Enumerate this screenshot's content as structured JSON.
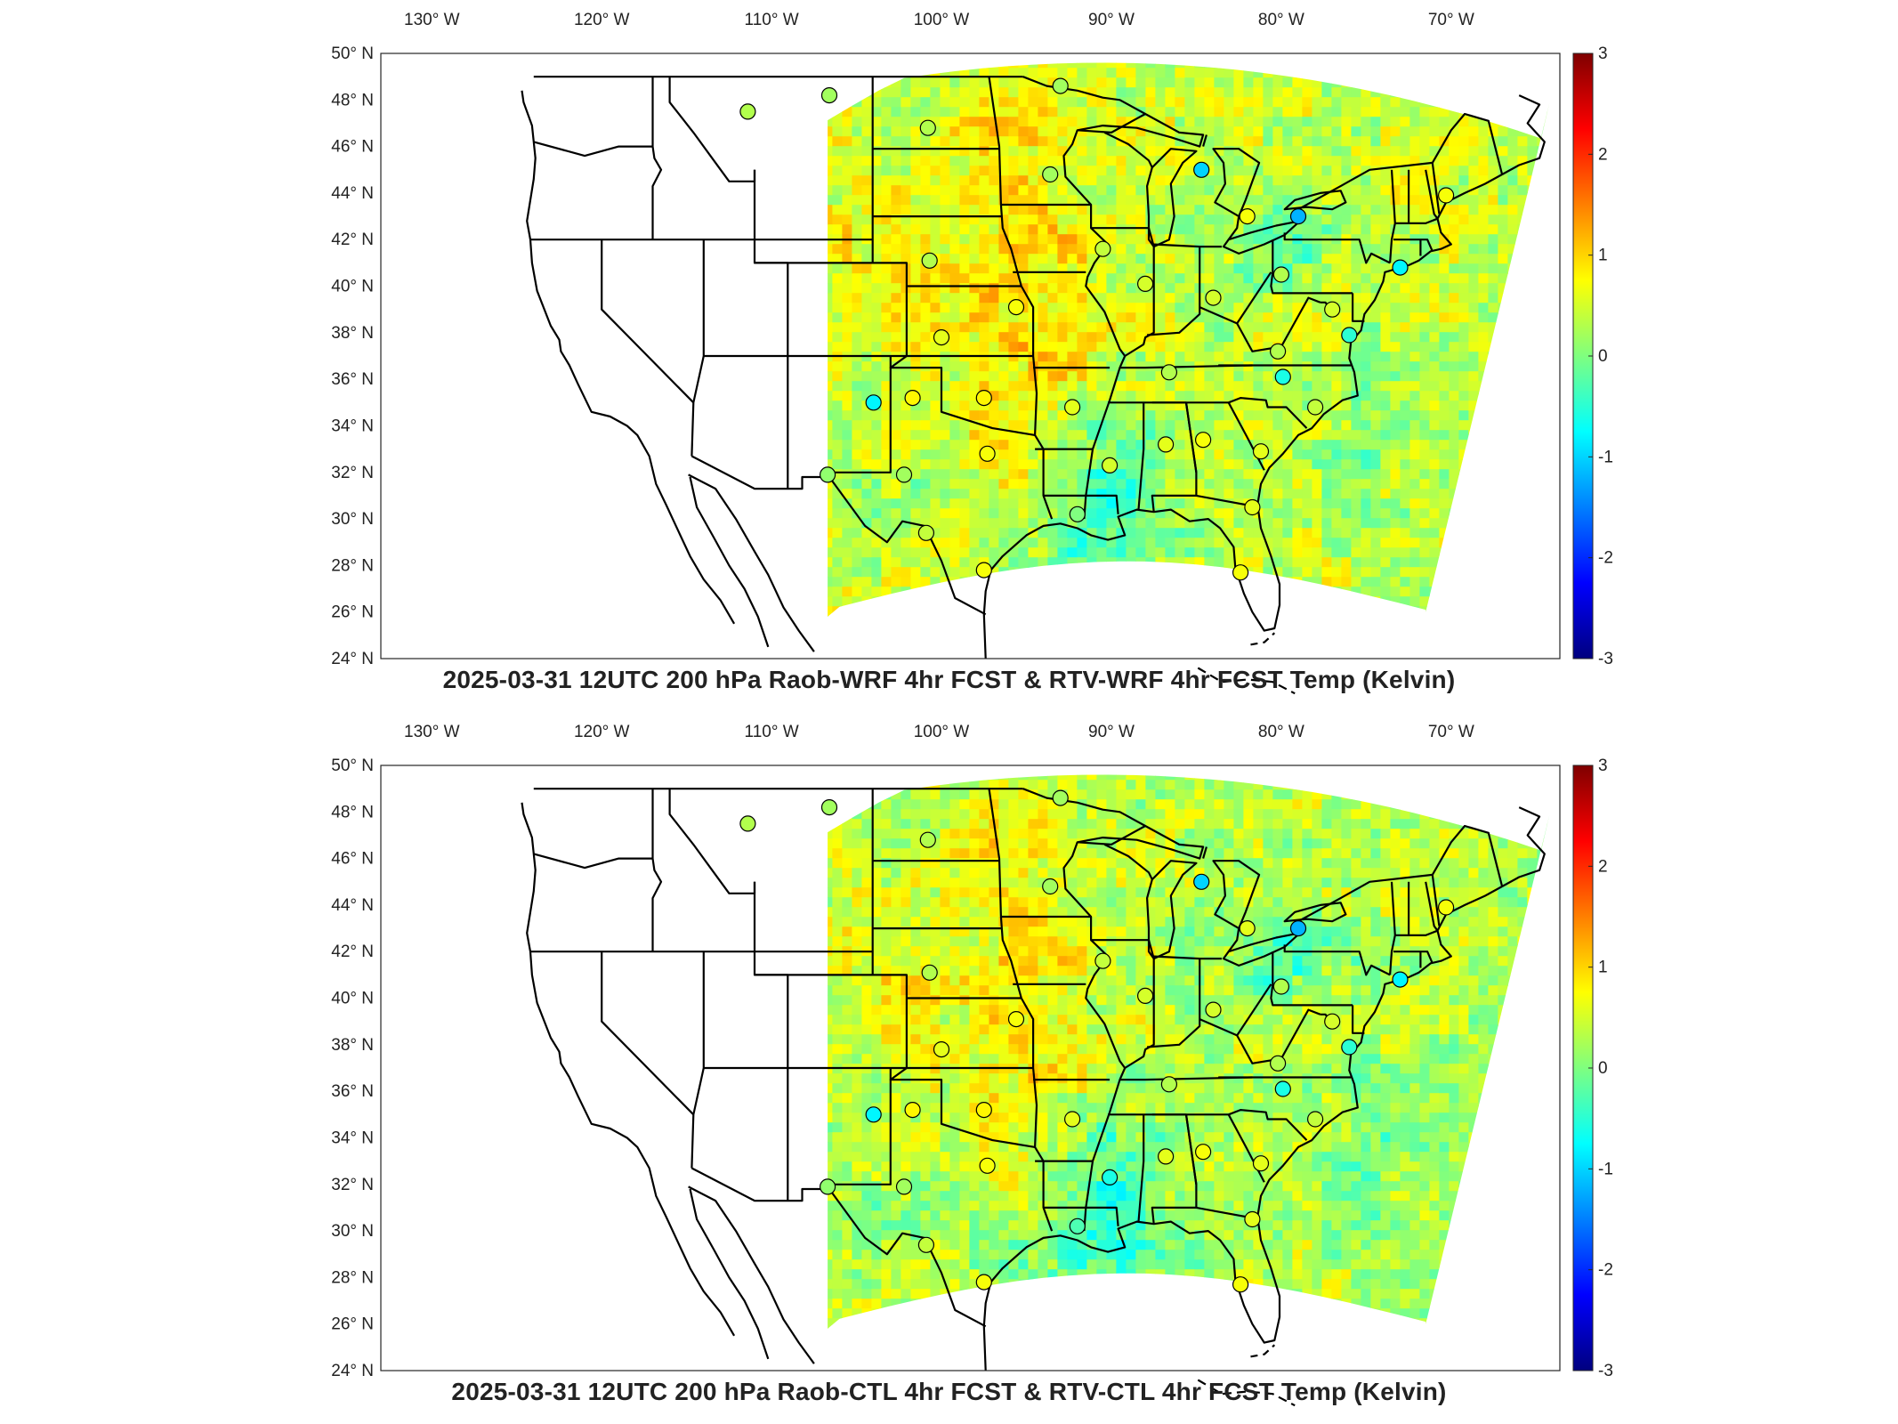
{
  "colors": {
    "land_background": "#ffffff",
    "borders": "#000000",
    "colormap": [
      "#00007f",
      "#0000ff",
      "#007fff",
      "#00ffff",
      "#7fff7f",
      "#ffff00",
      "#ff7f00",
      "#ff0000",
      "#7f0000"
    ]
  },
  "panels": [
    {
      "title": "2025-03-31 12UTC 200 hPa Raob-WRF 4hr FCST & RTV-WRF 4hr FCST Temp (Kelvin)",
      "longitude_labels": [
        "130° W",
        "120° W",
        "110° W",
        "100° W",
        "90° W",
        "80° W",
        "70° W"
      ],
      "latitude_labels": [
        "50° N",
        "48° N",
        "46° N",
        "44° N",
        "42° N",
        "40° N",
        "38° N",
        "36° N",
        "34° N",
        "32° N",
        "30° N",
        "28° N",
        "26° N",
        "24° N"
      ],
      "colorbar": {
        "min": -3,
        "max": 3,
        "ticks": [
          "3",
          "2",
          "1",
          "0",
          "-1",
          "-2",
          "-3"
        ]
      },
      "stations": [
        {
          "lon": -111.4,
          "lat": 47.5,
          "value": 0.3
        },
        {
          "lon": -106.6,
          "lat": 48.2,
          "value": 0.2
        },
        {
          "lon": -100.8,
          "lat": 46.8,
          "value": 0.3
        },
        {
          "lon": -93.6,
          "lat": 44.8,
          "value": 0.2
        },
        {
          "lon": -93.0,
          "lat": 48.6,
          "value": 0.2
        },
        {
          "lon": -84.7,
          "lat": 45.0,
          "value": -1.0
        },
        {
          "lon": -82.0,
          "lat": 43.0,
          "value": 0.7
        },
        {
          "lon": -79.0,
          "lat": 43.0,
          "value": -1.2
        },
        {
          "lon": -70.3,
          "lat": 43.9,
          "value": 0.7
        },
        {
          "lon": -73.0,
          "lat": 40.8,
          "value": -0.8
        },
        {
          "lon": -77.0,
          "lat": 39.0,
          "value": 0.5
        },
        {
          "lon": -80.0,
          "lat": 40.5,
          "value": 0.3
        },
        {
          "lon": -84.0,
          "lat": 39.5,
          "value": 0.5
        },
        {
          "lon": -88.0,
          "lat": 40.1,
          "value": 0.5
        },
        {
          "lon": -90.5,
          "lat": 41.6,
          "value": 0.4
        },
        {
          "lon": -100.7,
          "lat": 41.1,
          "value": 0.3
        },
        {
          "lon": -95.6,
          "lat": 39.1,
          "value": 0.7
        },
        {
          "lon": -100.0,
          "lat": 37.8,
          "value": 0.6
        },
        {
          "lon": -104.0,
          "lat": 35.0,
          "value": -0.8
        },
        {
          "lon": -101.7,
          "lat": 35.2,
          "value": 0.8
        },
        {
          "lon": -97.5,
          "lat": 35.2,
          "value": 0.8
        },
        {
          "lon": -97.3,
          "lat": 32.8,
          "value": 0.7
        },
        {
          "lon": -92.3,
          "lat": 34.8,
          "value": 0.6
        },
        {
          "lon": -86.6,
          "lat": 36.3,
          "value": 0.3
        },
        {
          "lon": -80.2,
          "lat": 37.2,
          "value": 0.3
        },
        {
          "lon": -79.9,
          "lat": 36.1,
          "value": -0.6
        },
        {
          "lon": -78.0,
          "lat": 34.8,
          "value": 0.4
        },
        {
          "lon": -81.2,
          "lat": 32.9,
          "value": 0.6
        },
        {
          "lon": -86.8,
          "lat": 33.2,
          "value": 0.6
        },
        {
          "lon": -84.6,
          "lat": 33.4,
          "value": 0.7
        },
        {
          "lon": -90.1,
          "lat": 32.3,
          "value": 0.5
        },
        {
          "lon": -92.0,
          "lat": 30.2,
          "value": 0.0
        },
        {
          "lon": -81.7,
          "lat": 30.5,
          "value": 0.6
        },
        {
          "lon": -82.4,
          "lat": 27.7,
          "value": 0.7
        },
        {
          "lon": -97.5,
          "lat": 27.8,
          "value": 0.7
        },
        {
          "lon": -100.9,
          "lat": 29.4,
          "value": 0.4
        },
        {
          "lon": -102.2,
          "lat": 31.9,
          "value": 0.2
        },
        {
          "lon": -106.7,
          "lat": 31.9,
          "value": 0.1
        },
        {
          "lon": -76.0,
          "lat": 37.9,
          "value": -0.5
        }
      ]
    },
    {
      "title": "2025-03-31 12UTC 200 hPa Raob-CTL 4hr FCST & RTV-CTL 4hr FCST Temp (Kelvin)",
      "longitude_labels": [
        "130° W",
        "120° W",
        "110° W",
        "100° W",
        "90° W",
        "80° W",
        "70° W"
      ],
      "latitude_labels": [
        "50° N",
        "48° N",
        "46° N",
        "44° N",
        "42° N",
        "40° N",
        "38° N",
        "36° N",
        "34° N",
        "32° N",
        "30° N",
        "28° N",
        "26° N",
        "24° N"
      ],
      "colorbar": {
        "min": -3,
        "max": 3,
        "ticks": [
          "3",
          "2",
          "1",
          "0",
          "-1",
          "-2",
          "-3"
        ]
      },
      "stations": [
        {
          "lon": -111.4,
          "lat": 47.5,
          "value": 0.3
        },
        {
          "lon": -106.6,
          "lat": 48.2,
          "value": 0.2
        },
        {
          "lon": -100.8,
          "lat": 46.8,
          "value": 0.3
        },
        {
          "lon": -93.6,
          "lat": 44.8,
          "value": 0.2
        },
        {
          "lon": -93.0,
          "lat": 48.6,
          "value": 0.2
        },
        {
          "lon": -84.7,
          "lat": 45.0,
          "value": -1.0
        },
        {
          "lon": -82.0,
          "lat": 43.0,
          "value": 0.6
        },
        {
          "lon": -79.0,
          "lat": 43.0,
          "value": -1.2
        },
        {
          "lon": -70.3,
          "lat": 43.9,
          "value": 0.7
        },
        {
          "lon": -73.0,
          "lat": 40.8,
          "value": -0.8
        },
        {
          "lon": -77.0,
          "lat": 39.0,
          "value": 0.5
        },
        {
          "lon": -80.0,
          "lat": 40.5,
          "value": 0.3
        },
        {
          "lon": -84.0,
          "lat": 39.5,
          "value": 0.5
        },
        {
          "lon": -88.0,
          "lat": 40.1,
          "value": 0.5
        },
        {
          "lon": -90.5,
          "lat": 41.6,
          "value": 0.4
        },
        {
          "lon": -100.7,
          "lat": 41.1,
          "value": 0.3
        },
        {
          "lon": -95.6,
          "lat": 39.1,
          "value": 0.7
        },
        {
          "lon": -100.0,
          "lat": 37.8,
          "value": 0.6
        },
        {
          "lon": -104.0,
          "lat": 35.0,
          "value": -0.8
        },
        {
          "lon": -101.7,
          "lat": 35.2,
          "value": 0.8
        },
        {
          "lon": -97.5,
          "lat": 35.2,
          "value": 0.8
        },
        {
          "lon": -97.3,
          "lat": 32.8,
          "value": 0.7
        },
        {
          "lon": -92.3,
          "lat": 34.8,
          "value": 0.6
        },
        {
          "lon": -86.6,
          "lat": 36.3,
          "value": 0.3
        },
        {
          "lon": -80.2,
          "lat": 37.2,
          "value": 0.3
        },
        {
          "lon": -79.9,
          "lat": 36.1,
          "value": -0.6
        },
        {
          "lon": -78.0,
          "lat": 34.8,
          "value": 0.4
        },
        {
          "lon": -81.2,
          "lat": 32.9,
          "value": 0.6
        },
        {
          "lon": -86.8,
          "lat": 33.2,
          "value": 0.6
        },
        {
          "lon": -84.6,
          "lat": 33.4,
          "value": 0.7
        },
        {
          "lon": -90.1,
          "lat": 32.3,
          "value": -0.6
        },
        {
          "lon": -92.0,
          "lat": 30.2,
          "value": -0.3
        },
        {
          "lon": -81.7,
          "lat": 30.5,
          "value": 0.6
        },
        {
          "lon": -82.4,
          "lat": 27.7,
          "value": 0.7
        },
        {
          "lon": -97.5,
          "lat": 27.8,
          "value": 0.7
        },
        {
          "lon": -100.9,
          "lat": 29.4,
          "value": 0.4
        },
        {
          "lon": -102.2,
          "lat": 31.9,
          "value": 0.2
        },
        {
          "lon": -106.7,
          "lat": 31.9,
          "value": 0.1
        },
        {
          "lon": -76.0,
          "lat": 37.9,
          "value": -0.5
        }
      ]
    }
  ]
}
